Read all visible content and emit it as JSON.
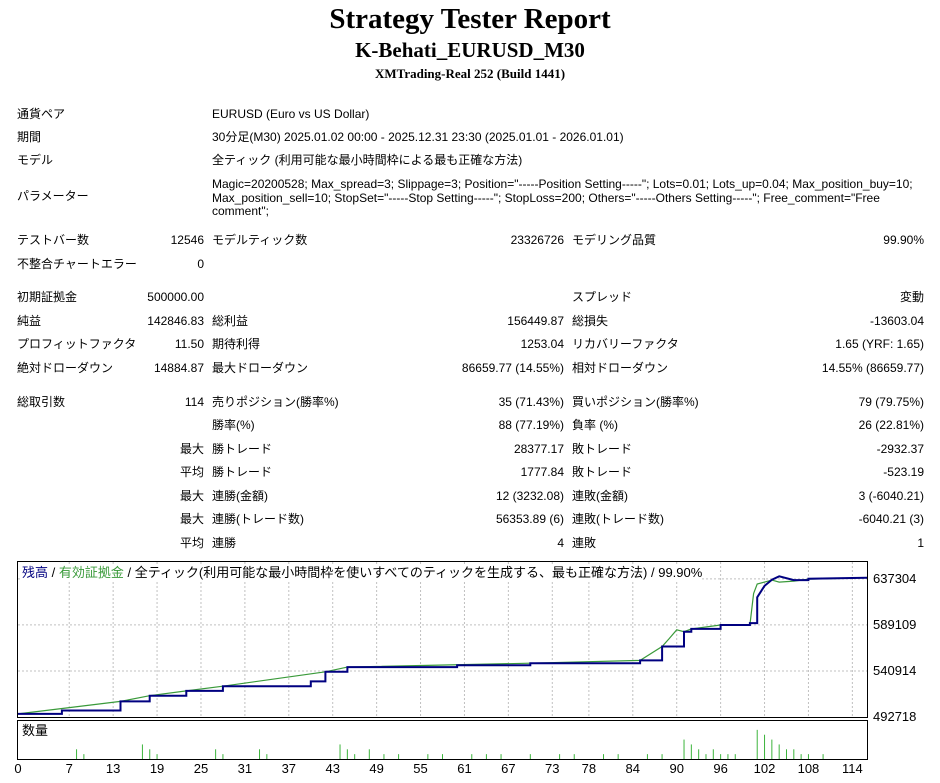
{
  "header": {
    "title": "Strategy Tester Report",
    "subtitle": "K-Behati_EURUSD_M30",
    "server": "XMTrading-Real 252 (Build 1441)"
  },
  "info": {
    "pair_label": "通貨ペア",
    "pair_value": "EURUSD (Euro vs US Dollar)",
    "period_label": "期間",
    "period_value": "30分足(M30) 2025.01.02 00:00 - 2025.12.31 23:30 (2025.01.01 - 2026.01.01)",
    "model_label": "モデル",
    "model_value": "全ティック (利用可能な最小時間枠による最も正確な方法)",
    "params_label": "パラメーター",
    "params_value": "Magic=20200528; Max_spread=3; Slippage=3; Position=\"-----Position Setting-----\"; Lots=0.01; Lots_up=0.04; Max_position_buy=10; Max_position_sell=10; StopSet=\"-----Stop Setting-----\"; StopLoss=200; Others=\"-----Others Setting-----\"; Free_comment=\"Free comment\";"
  },
  "stats": {
    "bars_label": "テストバー数",
    "bars_value": "12546",
    "ticks_label": "モデルティック数",
    "ticks_value": "23326726",
    "quality_label": "モデリング品質",
    "quality_value": "99.90%",
    "mismatch_label": "不整合チャートエラー",
    "mismatch_value": "0",
    "deposit_label": "初期証拠金",
    "deposit_value": "500000.00",
    "spread_label": "スプレッド",
    "spread_value": "変動",
    "netprofit_label": "純益",
    "netprofit_value": "142846.83",
    "grossprofit_label": "総利益",
    "grossprofit_value": "156449.87",
    "grossloss_label": "総損失",
    "grossloss_value": "-13603.04",
    "pf_label": "プロフィットファクタ",
    "pf_value": "11.50",
    "expected_label": "期待利得",
    "expected_value": "1253.04",
    "recovery_label": "リカバリーファクタ",
    "recovery_value": "1.65 (YRF: 1.65)",
    "absdd_label": "絶対ドローダウン",
    "absdd_value": "14884.87",
    "maxdd_label": "最大ドローダウン",
    "maxdd_value": "86659.77 (14.55%)",
    "reldd_label": "相対ドローダウン",
    "reldd_value": "14.55% (86659.77)",
    "trades_label": "総取引数",
    "trades_value": "114",
    "short_label": "売りポジション(勝率%)",
    "short_value": "35 (71.43%)",
    "long_label": "買いポジション(勝率%)",
    "long_value": "79 (79.75%)",
    "winrate_label": "勝率(%)",
    "winrate_value": "88 (77.19%)",
    "lossrate_label": "負率 (%)",
    "lossrate_value": "26 (22.81%)",
    "max_label": "最大",
    "avg_label": "平均",
    "largest_win_label": "勝トレード",
    "largest_win_value": "28377.17",
    "largest_loss_label": "敗トレード",
    "largest_loss_value": "-2932.37",
    "avg_win_label": "勝トレード",
    "avg_win_value": "1777.84",
    "avg_loss_label": "敗トレード",
    "avg_loss_value": "-523.19",
    "max_consec_wins_label": "連勝(金額)",
    "max_consec_wins_value": "12 (3232.08)",
    "max_consec_losses_label": "連敗(金額)",
    "max_consec_losses_value": "3 (-6040.21)",
    "max_consec_profit_label": "連勝(トレード数)",
    "max_consec_profit_value": "56353.89 (6)",
    "max_consec_loss_label": "連敗(トレード数)",
    "max_consec_loss_value": "-6040.21 (3)",
    "avg_consec_wins_label": "連勝",
    "avg_consec_wins_value": "4",
    "avg_consec_losses_label": "連敗",
    "avg_consec_losses_value": "1"
  },
  "chart": {
    "legend_balance": "残高",
    "legend_sep1": " / ",
    "legend_equity": "有効証拠金",
    "legend_rest": " / 全ティック(利用可能な最小時間枠を使いすべてのティックを生成する、最も正確な方法) / 99.90%",
    "volume_label": "数量",
    "colors": {
      "balance": "#000080",
      "equity": "#3a9a3a",
      "grid": "#c0c0c0",
      "volume": "#3cb43c"
    }
  },
  "chart_data": {
    "type": "line",
    "y_ticks": [
      "637304",
      "589109",
      "540914",
      "492718"
    ],
    "x_ticks": [
      "0",
      "7",
      "13",
      "19",
      "25",
      "31",
      "37",
      "43",
      "49",
      "55",
      "61",
      "67",
      "73",
      "78",
      "84",
      "90",
      "96",
      "102",
      "108",
      "114"
    ],
    "ylim": [
      492718,
      655000
    ],
    "xlim": [
      0,
      116
    ],
    "series": [
      {
        "name": "残高",
        "x": [
          0,
          6,
          6,
          14,
          14,
          18,
          18,
          23,
          23,
          28,
          28,
          40,
          40,
          42,
          42,
          45,
          45,
          60,
          60,
          70,
          70,
          85,
          85,
          88,
          88,
          91,
          91,
          92,
          92,
          96,
          96,
          100,
          100,
          101,
          101,
          102,
          103,
          104,
          106,
          108,
          108,
          116
        ],
        "y": [
          496000,
          496000,
          499500,
          499500,
          509000,
          509000,
          515000,
          515000,
          520000,
          520000,
          525000,
          525000,
          530000,
          530000,
          540000,
          540000,
          545000,
          545000,
          547000,
          547000,
          549000,
          549000,
          552000,
          552000,
          566500,
          566500,
          582000,
          582000,
          585000,
          585000,
          589000,
          589000,
          591000,
          591000,
          618000,
          630000,
          636500,
          640000,
          636000,
          636000,
          637500,
          638500
        ]
      },
      {
        "name": "有効証拠金",
        "x": [
          0,
          14,
          18,
          23,
          28,
          42,
          45,
          70,
          85,
          88,
          89,
          90,
          91,
          92,
          96,
          100,
          100.5,
          101,
          102,
          103,
          104,
          106,
          108,
          116
        ],
        "y": [
          496000,
          509000,
          515000,
          520000,
          525000,
          540000,
          545000,
          549000,
          552000,
          566500,
          575000,
          584000,
          582000,
          585000,
          589000,
          589000,
          622000,
          632000,
          634000,
          636000,
          634000,
          635000,
          637000,
          638500
        ]
      }
    ],
    "volume": {
      "x": [
        8,
        9,
        17,
        18,
        19,
        27,
        28,
        33,
        34,
        44,
        45,
        46,
        48,
        50,
        52,
        56,
        58,
        62,
        64,
        66,
        70,
        74,
        76,
        80,
        82,
        86,
        88,
        91,
        92,
        93,
        94,
        95,
        96,
        97,
        98,
        101,
        102,
        103,
        104,
        105,
        106,
        107,
        108,
        110
      ],
      "y": [
        2,
        1,
        3,
        2,
        1,
        2,
        1,
        2,
        1,
        3,
        2,
        1,
        2,
        1,
        1,
        1,
        1,
        1,
        1,
        1,
        1,
        1,
        1,
        1,
        1,
        1,
        1,
        4,
        3,
        2,
        1,
        2,
        1,
        1,
        1,
        6,
        5,
        4,
        3,
        2,
        2,
        1,
        1,
        1
      ],
      "ylim": [
        0,
        7
      ]
    }
  }
}
